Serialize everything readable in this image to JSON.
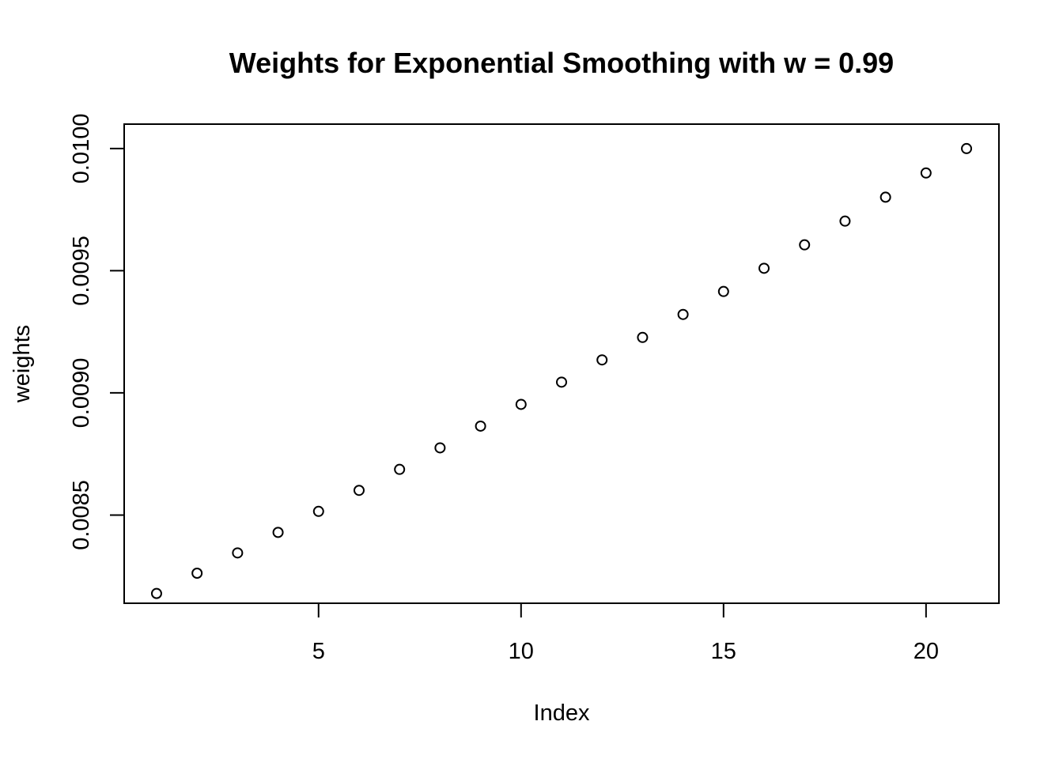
{
  "chart_data": {
    "type": "scatter",
    "title": "Weights for Exponential Smoothing with w = 0.99",
    "xlabel": "Index",
    "ylabel": "weights",
    "x": [
      1,
      2,
      3,
      4,
      5,
      6,
      7,
      8,
      9,
      10,
      11,
      12,
      13,
      14,
      15,
      16,
      17,
      18,
      19,
      20,
      21
    ],
    "y": [
      0.008179,
      0.008262,
      0.008345,
      0.008429,
      0.008515,
      0.008601,
      0.008687,
      0.008775,
      0.008864,
      0.008953,
      0.009044,
      0.009135,
      0.009227,
      0.009321,
      0.009415,
      0.00951,
      0.009606,
      0.009703,
      0.009801,
      0.0099,
      0.01
    ],
    "xlim": [
      0.2,
      21.8
    ],
    "ylim": [
      0.008139,
      0.0101
    ],
    "x_ticks": [
      5,
      10,
      15,
      20
    ],
    "x_tick_labels": [
      "5",
      "10",
      "15",
      "20"
    ],
    "y_ticks": [
      0.0085,
      0.009,
      0.0095,
      0.01
    ],
    "y_tick_labels": [
      "0.0085",
      "0.0090",
      "0.0095",
      "0.0100"
    ],
    "grid": false,
    "legend": "none",
    "marker": "open-circle",
    "color": "#000000"
  }
}
